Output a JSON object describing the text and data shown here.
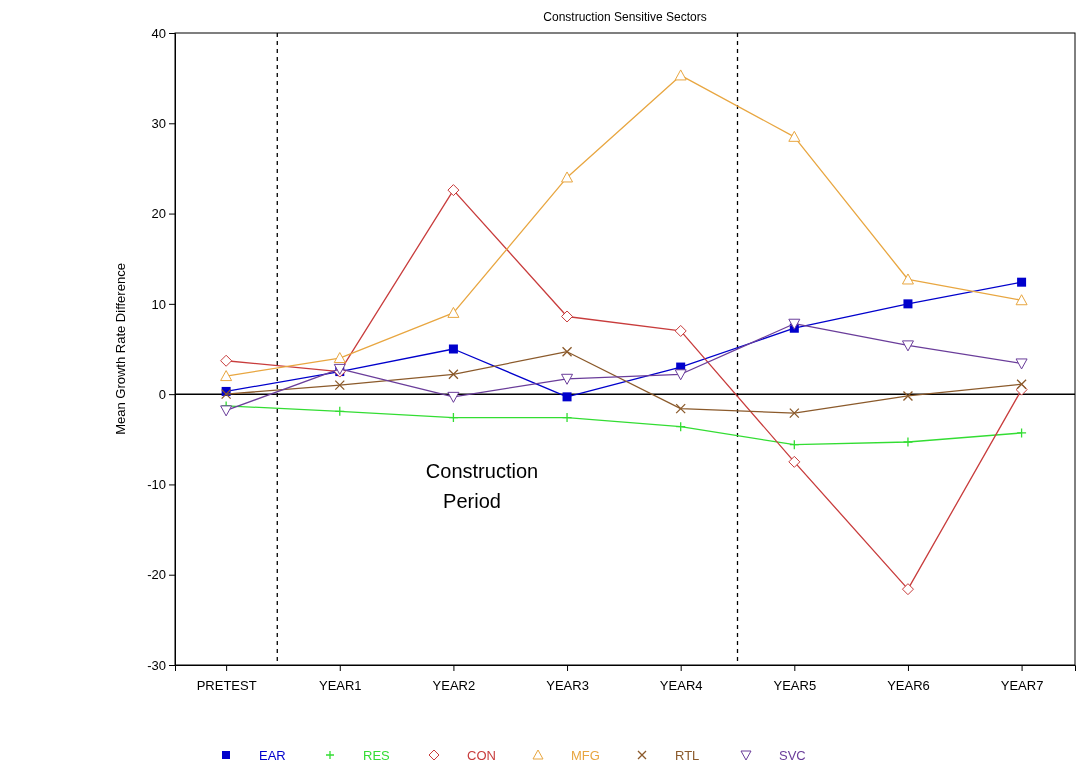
{
  "chart_data": {
    "type": "line",
    "title": "Construction Sensitive Sectors",
    "ylabel": "Mean Growth Rate Difference",
    "categories": [
      "PRETEST",
      "YEAR1",
      "YEAR2",
      "YEAR3",
      "YEAR4",
      "YEAR5",
      "YEAR6",
      "YEAR7"
    ],
    "series": [
      {
        "name": "EAR",
        "color": "#0000cc",
        "marker": "square",
        "values": [
          0.3,
          2.5,
          5.0,
          -0.3,
          3.0,
          7.3,
          10.0,
          12.4
        ]
      },
      {
        "name": "RES",
        "color": "#33dd33",
        "marker": "cross",
        "values": [
          -1.3,
          -1.9,
          -2.6,
          -2.6,
          -3.6,
          -5.6,
          -5.3,
          -4.3
        ]
      },
      {
        "name": "CON",
        "color": "#c83c3c",
        "marker": "diamond",
        "values": [
          3.7,
          2.5,
          22.6,
          8.6,
          7.0,
          -7.5,
          -21.6,
          0.5
        ]
      },
      {
        "name": "MFG",
        "color": "#e8a640",
        "marker": "triangle",
        "values": [
          2.0,
          4.0,
          9.0,
          24.0,
          35.3,
          28.5,
          12.7,
          10.4
        ]
      },
      {
        "name": "RTL",
        "color": "#8b5a2b",
        "marker": "x",
        "values": [
          0.0,
          1.0,
          2.2,
          4.7,
          -1.6,
          -2.1,
          -0.2,
          1.1
        ]
      },
      {
        "name": "SVC",
        "color": "#6a3d9a",
        "marker": "triangle-down",
        "values": [
          -1.8,
          2.8,
          -0.3,
          1.7,
          2.2,
          7.8,
          5.4,
          3.4
        ]
      }
    ],
    "ylim": [
      -30,
      40
    ],
    "yticks": [
      -30,
      -20,
      -10,
      0,
      10,
      20,
      30,
      40
    ],
    "ref_lines": [
      {
        "axis": "y",
        "value": 0,
        "line_style": "solid",
        "color": "#000000"
      }
    ],
    "annotations": [
      "Construction\nPeriod"
    ],
    "legend": "bottom",
    "grid": false
  }
}
